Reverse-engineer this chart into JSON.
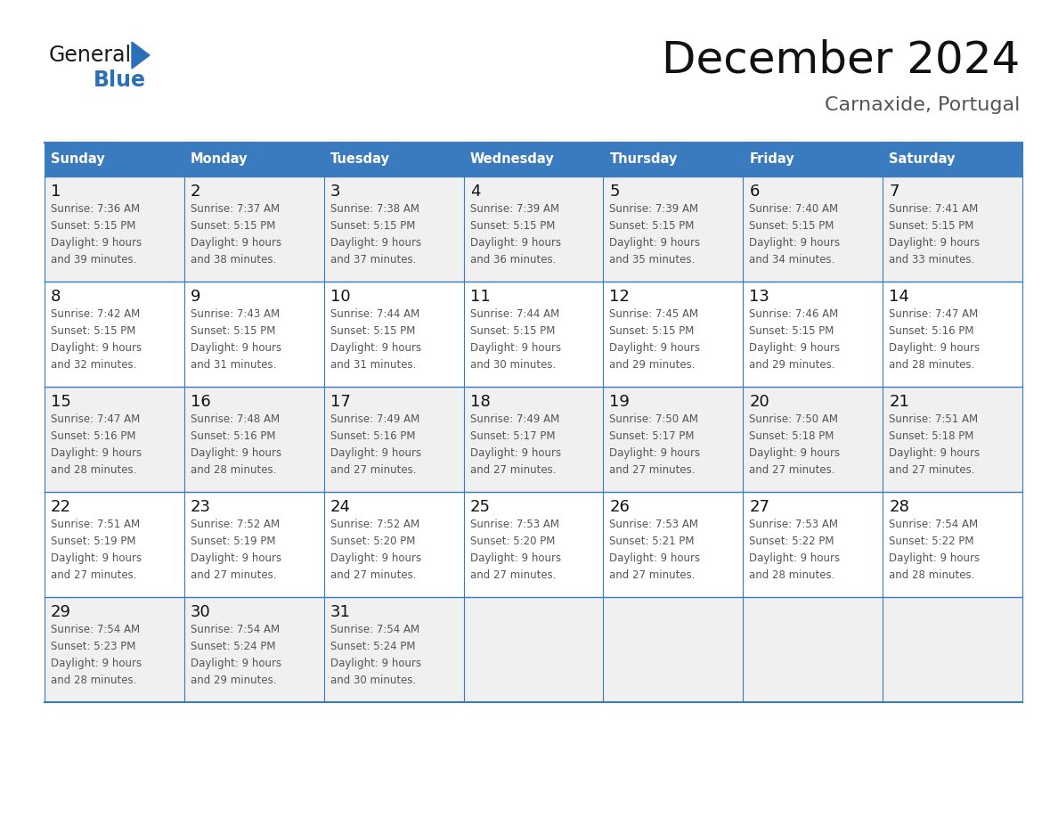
{
  "title": "December 2024",
  "subtitle": "Carnaxide, Portugal",
  "days_of_week": [
    "Sunday",
    "Monday",
    "Tuesday",
    "Wednesday",
    "Thursday",
    "Friday",
    "Saturday"
  ],
  "header_bg": "#3a7abf",
  "header_text": "#ffffff",
  "cell_bg_odd": "#f0f0f0",
  "cell_bg_even": "#ffffff",
  "text_color": "#555555",
  "day_num_color": "#111111",
  "border_color": "#3a7abf",
  "logo_general_color": "#1a1a1a",
  "logo_blue_color": "#2a6fba",
  "calendar_data": [
    [
      {
        "day": 1,
        "sunrise": "7:36 AM",
        "sunset": "5:15 PM",
        "daylight": "9 hours and 39 minutes."
      },
      {
        "day": 2,
        "sunrise": "7:37 AM",
        "sunset": "5:15 PM",
        "daylight": "9 hours and 38 minutes."
      },
      {
        "day": 3,
        "sunrise": "7:38 AM",
        "sunset": "5:15 PM",
        "daylight": "9 hours and 37 minutes."
      },
      {
        "day": 4,
        "sunrise": "7:39 AM",
        "sunset": "5:15 PM",
        "daylight": "9 hours and 36 minutes."
      },
      {
        "day": 5,
        "sunrise": "7:39 AM",
        "sunset": "5:15 PM",
        "daylight": "9 hours and 35 minutes."
      },
      {
        "day": 6,
        "sunrise": "7:40 AM",
        "sunset": "5:15 PM",
        "daylight": "9 hours and 34 minutes."
      },
      {
        "day": 7,
        "sunrise": "7:41 AM",
        "sunset": "5:15 PM",
        "daylight": "9 hours and 33 minutes."
      }
    ],
    [
      {
        "day": 8,
        "sunrise": "7:42 AM",
        "sunset": "5:15 PM",
        "daylight": "9 hours and 32 minutes."
      },
      {
        "day": 9,
        "sunrise": "7:43 AM",
        "sunset": "5:15 PM",
        "daylight": "9 hours and 31 minutes."
      },
      {
        "day": 10,
        "sunrise": "7:44 AM",
        "sunset": "5:15 PM",
        "daylight": "9 hours and 31 minutes."
      },
      {
        "day": 11,
        "sunrise": "7:44 AM",
        "sunset": "5:15 PM",
        "daylight": "9 hours and 30 minutes."
      },
      {
        "day": 12,
        "sunrise": "7:45 AM",
        "sunset": "5:15 PM",
        "daylight": "9 hours and 29 minutes."
      },
      {
        "day": 13,
        "sunrise": "7:46 AM",
        "sunset": "5:15 PM",
        "daylight": "9 hours and 29 minutes."
      },
      {
        "day": 14,
        "sunrise": "7:47 AM",
        "sunset": "5:16 PM",
        "daylight": "9 hours and 28 minutes."
      }
    ],
    [
      {
        "day": 15,
        "sunrise": "7:47 AM",
        "sunset": "5:16 PM",
        "daylight": "9 hours and 28 minutes."
      },
      {
        "day": 16,
        "sunrise": "7:48 AM",
        "sunset": "5:16 PM",
        "daylight": "9 hours and 28 minutes."
      },
      {
        "day": 17,
        "sunrise": "7:49 AM",
        "sunset": "5:16 PM",
        "daylight": "9 hours and 27 minutes."
      },
      {
        "day": 18,
        "sunrise": "7:49 AM",
        "sunset": "5:17 PM",
        "daylight": "9 hours and 27 minutes."
      },
      {
        "day": 19,
        "sunrise": "7:50 AM",
        "sunset": "5:17 PM",
        "daylight": "9 hours and 27 minutes."
      },
      {
        "day": 20,
        "sunrise": "7:50 AM",
        "sunset": "5:18 PM",
        "daylight": "9 hours and 27 minutes."
      },
      {
        "day": 21,
        "sunrise": "7:51 AM",
        "sunset": "5:18 PM",
        "daylight": "9 hours and 27 minutes."
      }
    ],
    [
      {
        "day": 22,
        "sunrise": "7:51 AM",
        "sunset": "5:19 PM",
        "daylight": "9 hours and 27 minutes."
      },
      {
        "day": 23,
        "sunrise": "7:52 AM",
        "sunset": "5:19 PM",
        "daylight": "9 hours and 27 minutes."
      },
      {
        "day": 24,
        "sunrise": "7:52 AM",
        "sunset": "5:20 PM",
        "daylight": "9 hours and 27 minutes."
      },
      {
        "day": 25,
        "sunrise": "7:53 AM",
        "sunset": "5:20 PM",
        "daylight": "9 hours and 27 minutes."
      },
      {
        "day": 26,
        "sunrise": "7:53 AM",
        "sunset": "5:21 PM",
        "daylight": "9 hours and 27 minutes."
      },
      {
        "day": 27,
        "sunrise": "7:53 AM",
        "sunset": "5:22 PM",
        "daylight": "9 hours and 28 minutes."
      },
      {
        "day": 28,
        "sunrise": "7:54 AM",
        "sunset": "5:22 PM",
        "daylight": "9 hours and 28 minutes."
      }
    ],
    [
      {
        "day": 29,
        "sunrise": "7:54 AM",
        "sunset": "5:23 PM",
        "daylight": "9 hours and 28 minutes."
      },
      {
        "day": 30,
        "sunrise": "7:54 AM",
        "sunset": "5:24 PM",
        "daylight": "9 hours and 29 minutes."
      },
      {
        "day": 31,
        "sunrise": "7:54 AM",
        "sunset": "5:24 PM",
        "daylight": "9 hours and 30 minutes."
      },
      null,
      null,
      null,
      null
    ]
  ]
}
